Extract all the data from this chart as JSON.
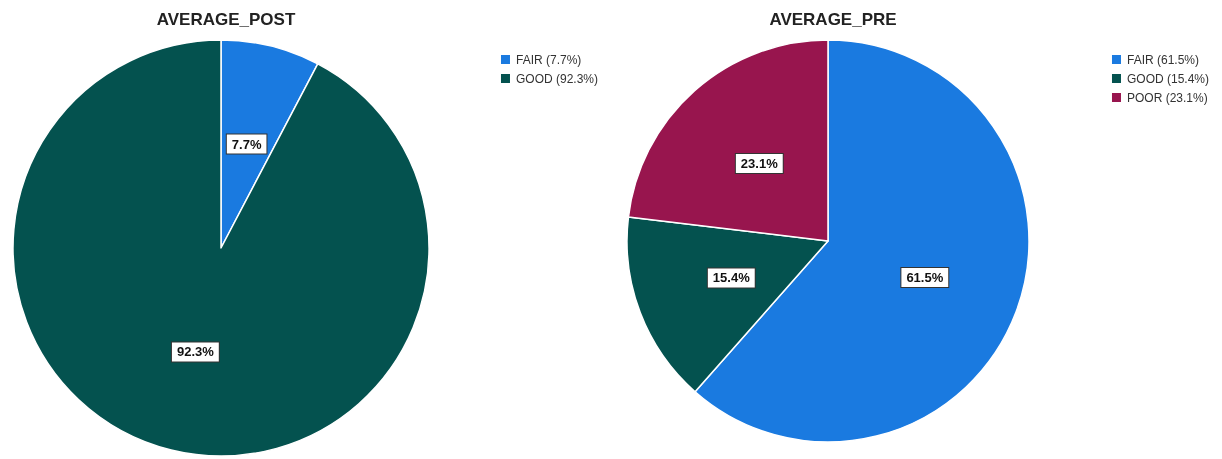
{
  "chart_data": [
    {
      "type": "pie",
      "title": "AVERAGE_POST",
      "categories": [
        "FAIR (7.7%)",
        "GOOD (92.3%)"
      ],
      "values": [
        7.7,
        92.3
      ],
      "colors": [
        "#1a7ae0",
        "#04524f"
      ],
      "value_labels": [
        "7.7%",
        "92.3%"
      ],
      "legend": "top right"
    },
    {
      "type": "pie",
      "title": "AVERAGE_PRE",
      "categories": [
        "FAIR (61.5%)",
        "GOOD (15.4%)",
        "POOR (23.1%)"
      ],
      "values": [
        61.5,
        15.4,
        23.1
      ],
      "colors": [
        "#1a7ae0",
        "#04524f",
        "#98154e"
      ],
      "value_labels": [
        "61.5%",
        "15.4%",
        "23.1%"
      ],
      "legend": "top right"
    }
  ]
}
